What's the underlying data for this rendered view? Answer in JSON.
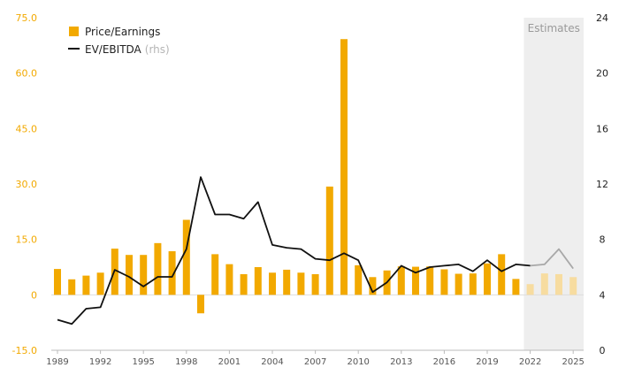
{
  "chart_data": {
    "type": "bar+line",
    "years": [
      1989,
      1990,
      1991,
      1992,
      1993,
      1994,
      1995,
      1996,
      1997,
      1998,
      1999,
      2000,
      2001,
      2002,
      2003,
      2004,
      2005,
      2006,
      2007,
      2008,
      2009,
      2010,
      2011,
      2012,
      2013,
      2014,
      2015,
      2016,
      2017,
      2018,
      2019,
      2020,
      2021,
      2022,
      2023,
      2024,
      2025
    ],
    "x_tick_labels": [
      "1989",
      "1992",
      "1995",
      "1998",
      "2001",
      "2004",
      "2007",
      "2010",
      "2013",
      "2016",
      "2019",
      "2022",
      "2025"
    ],
    "left_axis": {
      "ylim": [
        -15,
        75
      ],
      "ticks": [
        "-15.0",
        "0",
        "15.0",
        "30.0",
        "45.0",
        "60.0",
        "75.0"
      ],
      "color": "#f2a900"
    },
    "right_axis": {
      "ylim": [
        0,
        24
      ],
      "ticks": [
        "0",
        "4",
        "8",
        "12",
        "16",
        "20",
        "24"
      ]
    },
    "series": [
      {
        "name": "Price/Earnings",
        "kind": "bar",
        "axis": "left",
        "color": "#f2a900",
        "estimate_color": "#f7dca0",
        "values": [
          7.0,
          4.2,
          5.2,
          6.0,
          12.5,
          10.8,
          10.8,
          14.0,
          11.8,
          20.3,
          -5.0,
          11.0,
          8.3,
          5.6,
          7.5,
          6.0,
          6.8,
          6.0,
          5.6,
          29.3,
          69.2,
          8.0,
          4.8,
          6.6,
          7.7,
          7.6,
          7.7,
          6.9,
          5.7,
          5.8,
          8.5,
          11.0,
          4.3,
          2.9,
          5.8,
          5.6,
          4.8
        ]
      },
      {
        "name": "EV/EBITDA",
        "name_suffix": "(rhs)",
        "kind": "line",
        "axis": "right",
        "color": "#111111",
        "estimate_color": "#a8a8a8",
        "values": [
          2.2,
          1.9,
          3.0,
          3.1,
          5.8,
          5.3,
          4.6,
          5.3,
          5.3,
          7.3,
          12.5,
          9.8,
          9.8,
          9.5,
          10.7,
          7.6,
          7.4,
          7.3,
          6.6,
          6.5,
          7.0,
          6.5,
          4.2,
          4.9,
          6.1,
          5.6,
          6.0,
          6.1,
          6.2,
          5.7,
          6.5,
          5.7,
          6.2,
          6.1,
          6.2,
          7.3,
          5.9
        ]
      }
    ],
    "estimates": {
      "label": "Estimates",
      "first_year": 2022,
      "shade_color": "#eeeeee"
    },
    "legend_position": "top-left",
    "grid": false
  }
}
